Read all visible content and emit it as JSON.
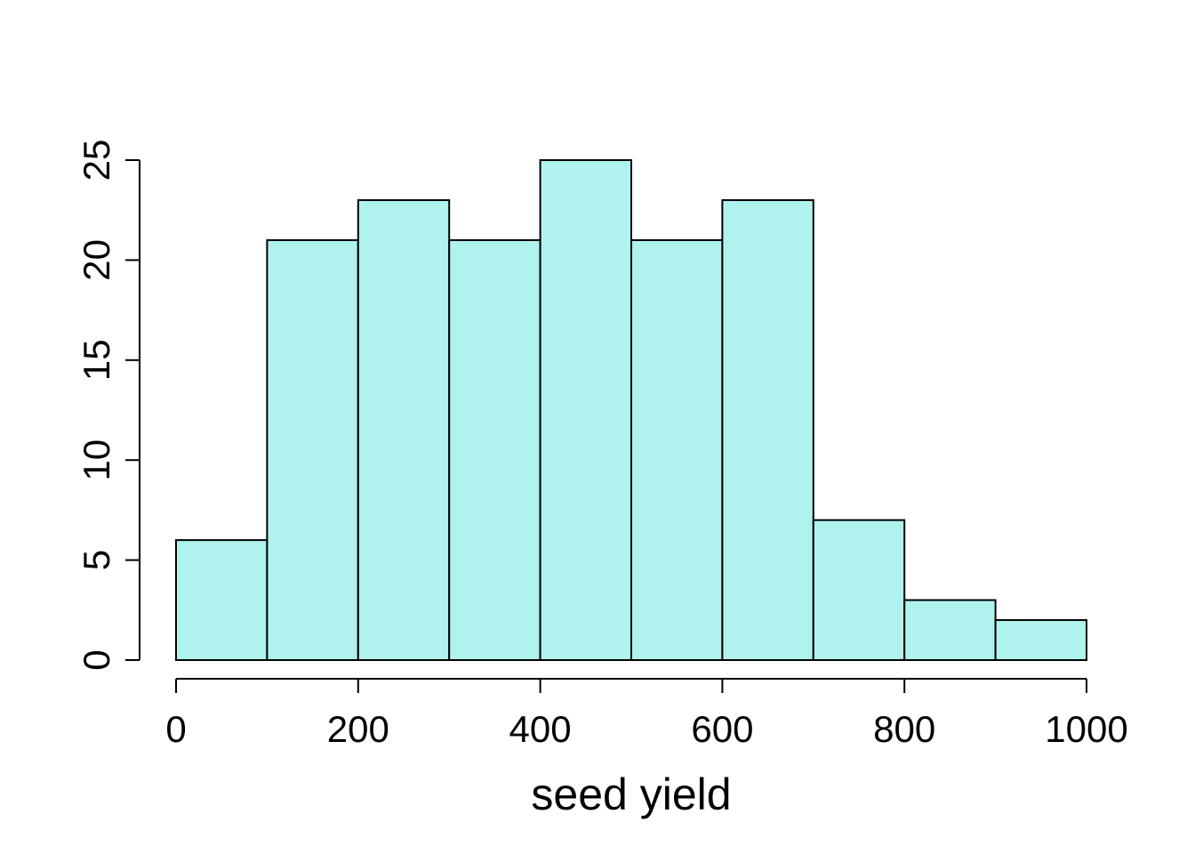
{
  "chart_data": {
    "type": "bar",
    "title": "",
    "xlabel": "seed yield",
    "ylabel": "",
    "bin_edges": [
      0,
      100,
      200,
      300,
      400,
      500,
      600,
      700,
      800,
      900,
      1000
    ],
    "values": [
      6,
      21,
      23,
      21,
      25,
      21,
      23,
      7,
      3,
      2
    ],
    "xlim": [
      0,
      1000
    ],
    "ylim": [
      0,
      25
    ],
    "x_ticks": [
      "0",
      "200",
      "400",
      "600",
      "800",
      "1000"
    ],
    "y_ticks": [
      "0",
      "5",
      "10",
      "15",
      "20",
      "25"
    ],
    "x_tick_values": [
      0,
      200,
      400,
      600,
      800,
      1000
    ],
    "y_tick_values": [
      0,
      5,
      10,
      15,
      20,
      25
    ],
    "bar_color": "#B0F3EE",
    "edge_color": "#000000",
    "grid": false,
    "legend": "none"
  }
}
